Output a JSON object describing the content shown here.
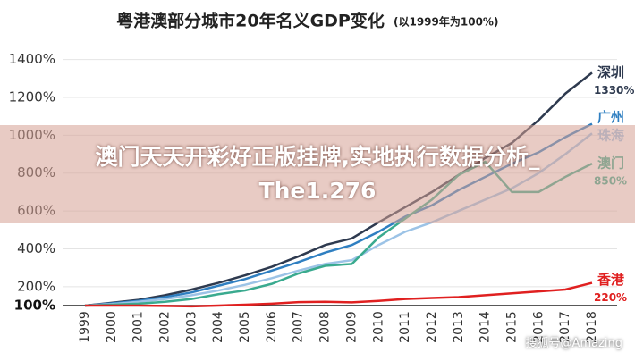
{
  "chart_data": {
    "type": "line",
    "title": "粤港澳部分城市20年名义GDP变化",
    "subtitle": "(以1999年为100%)",
    "categories": [
      "1999",
      "2000",
      "2001",
      "2002",
      "2003",
      "2004",
      "2005",
      "2006",
      "2007",
      "2008",
      "2009",
      "2010",
      "2011",
      "2012",
      "2013",
      "2014",
      "2015",
      "2016",
      "2017",
      "2018"
    ],
    "ylim": [
      100,
      1450
    ],
    "yticks": [
      {
        "value": 100,
        "label": "100%"
      },
      {
        "value": 200,
        "label": "200%"
      },
      {
        "value": 400,
        "label": "400%"
      },
      {
        "value": 600,
        "label": "600%"
      },
      {
        "value": 800,
        "label": "800%"
      },
      {
        "value": 1000,
        "label": "1000%"
      },
      {
        "value": 1200,
        "label": "1200%"
      },
      {
        "value": 1400,
        "label": "1400%"
      }
    ],
    "grid": true,
    "series": [
      {
        "name": "深圳",
        "color": "#2e3a4f",
        "values": [
          100,
          115,
          130,
          155,
          185,
          220,
          260,
          305,
          360,
          420,
          455,
          540,
          620,
          700,
          790,
          880,
          960,
          1080,
          1220,
          1330
        ],
        "value_labels": [
          null,
          null,
          null,
          null,
          null,
          null,
          null,
          null,
          null,
          null,
          null,
          null,
          null,
          null,
          null,
          null,
          null,
          null,
          null,
          "1330%"
        ]
      },
      {
        "name": "广州",
        "color": "#2f7fc1",
        "values": [
          100,
          112,
          125,
          145,
          170,
          205,
          240,
          285,
          330,
          380,
          420,
          490,
          570,
          630,
          710,
          780,
          850,
          910,
          990,
          1060
        ]
      },
      {
        "name": "珠海",
        "color": "#9cc3e6",
        "values": [
          100,
          108,
          120,
          135,
          155,
          180,
          210,
          245,
          285,
          320,
          340,
          420,
          490,
          540,
          600,
          660,
          720,
          800,
          900,
          1010
        ]
      },
      {
        "name": "澳门",
        "color": "#3aaa8f",
        "values": [
          100,
          105,
          110,
          120,
          135,
          160,
          180,
          215,
          270,
          310,
          320,
          460,
          560,
          660,
          790,
          860,
          700,
          700,
          780,
          850
        ],
        "value_labels": [
          null,
          null,
          null,
          null,
          null,
          null,
          null,
          null,
          null,
          null,
          null,
          null,
          null,
          null,
          null,
          null,
          null,
          null,
          null,
          "850%"
        ]
      },
      {
        "name": "香港",
        "color": "#e02020",
        "values": [
          100,
          100,
          100,
          98,
          96,
          100,
          105,
          110,
          118,
          120,
          117,
          125,
          135,
          140,
          145,
          155,
          165,
          175,
          185,
          220
        ],
        "value_labels": [
          null,
          null,
          null,
          null,
          null,
          null,
          null,
          null,
          null,
          null,
          null,
          null,
          null,
          null,
          null,
          null,
          null,
          null,
          null,
          "220%"
        ]
      }
    ]
  },
  "overlay": {
    "line1": "澳门天天开彩好正版挂牌,实地执行数据分析_",
    "line2": "The1.276"
  },
  "watermark": "搜狐号@Amazing"
}
